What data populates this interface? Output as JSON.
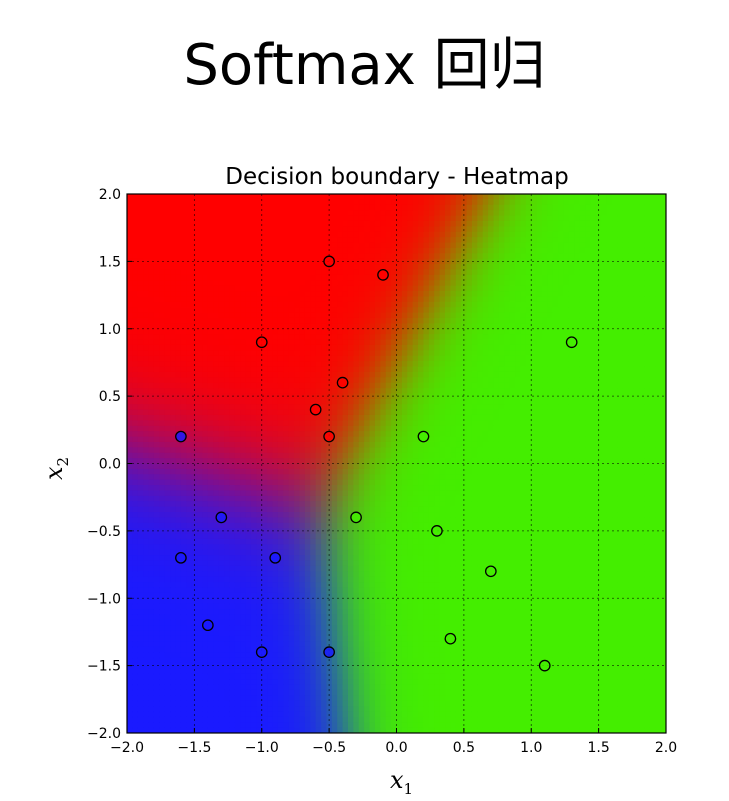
{
  "page": {
    "title": "Softmax 回归"
  },
  "chart_data": {
    "type": "scatter",
    "title": "Decision boundary - Heatmap",
    "xlabel": "x1",
    "ylabel": "x2",
    "xlim": [
      -2.0,
      2.0
    ],
    "ylim": [
      -2.0,
      2.0
    ],
    "xticks": [
      "−2.0",
      "−1.5",
      "−1.0",
      "−0.5",
      "0.0",
      "0.5",
      "1.0",
      "1.5",
      "2.0"
    ],
    "yticks": [
      "−2.0",
      "−1.5",
      "−1.0",
      "−0.5",
      "0.0",
      "0.5",
      "1.0",
      "1.5",
      "2.0"
    ],
    "grid": true,
    "background": "heatmap of class probabilities (red / green / blue regions)",
    "colors": {
      "red": "#ff0000",
      "green": "#44ee00",
      "blue": "#1a1aff"
    },
    "series": [
      {
        "color": "red",
        "x": [
          -0.5,
          -0.1,
          -1.0,
          -0.4,
          -0.6,
          -0.5
        ],
        "y": [
          1.5,
          1.4,
          0.9,
          0.6,
          0.4,
          0.2
        ]
      },
      {
        "color": "green",
        "x": [
          1.3,
          0.2,
          -0.3,
          0.3,
          0.7,
          0.4,
          1.1
        ],
        "y": [
          0.9,
          0.2,
          -0.4,
          -0.5,
          -0.8,
          -1.3,
          -1.5
        ]
      },
      {
        "color": "blue",
        "x": [
          -1.6,
          -1.3,
          -1.6,
          -0.9,
          -1.4,
          -1.0,
          -0.5
        ],
        "y": [
          0.2,
          -0.4,
          -0.7,
          -0.7,
          -1.2,
          -1.4,
          -1.4
        ]
      }
    ]
  }
}
